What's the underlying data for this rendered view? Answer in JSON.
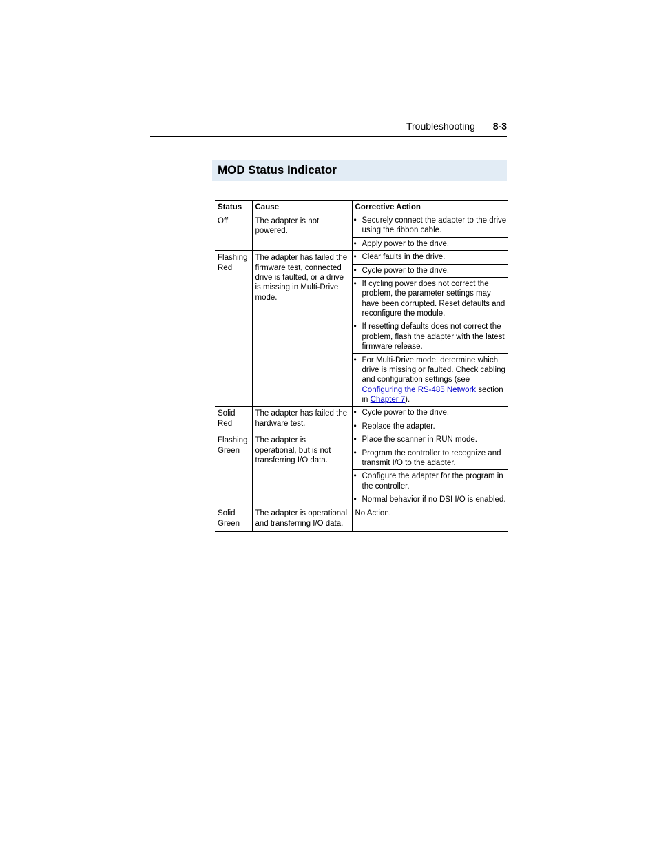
{
  "header": {
    "chapter": "Troubleshooting",
    "page": "8-3"
  },
  "section": {
    "title": "MOD Status Indicator"
  },
  "table": {
    "columns": [
      "Status",
      "Cause",
      "Corrective Action"
    ],
    "rows": [
      {
        "status": "Off",
        "cause": "The adapter is not powered.",
        "actions": [
          "Securely connect the adapter to the drive using the ribbon cable.",
          "Apply power to the drive."
        ]
      },
      {
        "status": "Flashing Red",
        "cause": "The adapter has failed the firmware test, connected drive is faulted, or a drive is missing in Multi-Drive mode.",
        "actions": [
          "Clear faults in the drive.",
          "Cycle power to the drive.",
          "If cycling power does not correct the problem, the parameter settings may have been corrupted. Reset defaults and reconfigure the module.",
          "If resetting defaults does not correct the problem, flash the adapter with the latest firmware release.",
          "__LINK__For Multi-Drive mode, determine which drive is missing or faulted. Check cabling and configuration settings (see |Configuring the RS-485 Network| section in |Chapter 7|)."
        ]
      },
      {
        "status": "Solid Red",
        "cause": "The adapter has failed the hardware test.",
        "actions": [
          "Cycle power to the drive.",
          "Replace the adapter."
        ]
      },
      {
        "status": "Flashing Green",
        "cause": "The adapter is operational, but is not transferring I/O data.",
        "actions": [
          "Place the scanner in RUN mode.",
          "Program the controller to recognize and transmit I/O to the adapter.",
          "Configure the adapter for the program in the controller.",
          "Normal behavior if no DSI I/O is enabled."
        ]
      },
      {
        "status": "Solid Green",
        "cause": "The adapter is operational and transferring I/O data.",
        "actions_plain": "No Action."
      }
    ]
  }
}
